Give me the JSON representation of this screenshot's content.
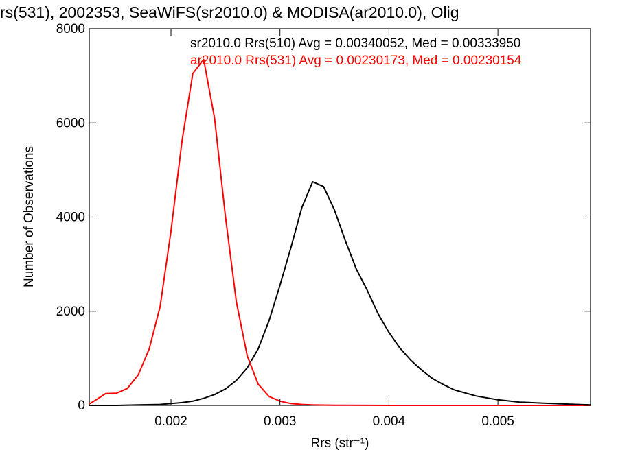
{
  "chart_data": {
    "type": "line",
    "title": "rs(531), 2002353, SeaWiFS(sr2010.0) & MODISA(ar2010.0), Olig",
    "xlabel": "Rrs (str⁻¹)",
    "ylabel": "Number of Observations",
    "xlim": [
      0.00125,
      0.00585
    ],
    "ylim": [
      0,
      8000
    ],
    "x_ticks": [
      {
        "value": 0.002,
        "label": "0.002"
      },
      {
        "value": 0.003,
        "label": "0.003"
      },
      {
        "value": 0.004,
        "label": "0.004"
      },
      {
        "value": 0.005,
        "label": "0.005"
      }
    ],
    "y_ticks": [
      {
        "value": 0,
        "label": "0"
      },
      {
        "value": 2000,
        "label": "2000"
      },
      {
        "value": 4000,
        "label": "4000"
      },
      {
        "value": 6000,
        "label": "6000"
      },
      {
        "value": 8000,
        "label": "8000"
      }
    ],
    "grid": false,
    "legend_position": "top-right",
    "series": [
      {
        "name": "sr2010.0 Rrs(510) Avg = 0.00340052, Med = 0.00333950",
        "color": "#000000",
        "x": [
          0.00125,
          0.0015,
          0.0017,
          0.0019,
          0.002,
          0.0021,
          0.0022,
          0.0023,
          0.0024,
          0.0025,
          0.0026,
          0.0027,
          0.0028,
          0.0029,
          0.003,
          0.0031,
          0.0032,
          0.0033,
          0.0034,
          0.0035,
          0.0036,
          0.0037,
          0.0038,
          0.0039,
          0.004,
          0.0041,
          0.0042,
          0.0043,
          0.0044,
          0.0045,
          0.0046,
          0.0048,
          0.005,
          0.0052,
          0.0054,
          0.0056,
          0.00585
        ],
        "y": [
          0,
          0,
          10,
          20,
          40,
          60,
          90,
          150,
          230,
          350,
          530,
          800,
          1200,
          1800,
          2550,
          3350,
          4200,
          4750,
          4650,
          4150,
          3500,
          2900,
          2450,
          1950,
          1550,
          1220,
          960,
          750,
          570,
          440,
          330,
          200,
          120,
          70,
          50,
          30,
          10
        ]
      },
      {
        "name": "ar2010.0 Rrs(531) Avg = 0.00230173, Med = 0.00230154",
        "color": "#ff0000",
        "x": [
          0.00125,
          0.0013,
          0.0014,
          0.0015,
          0.0016,
          0.0017,
          0.0018,
          0.0019,
          0.002,
          0.0021,
          0.0022,
          0.0023,
          0.0024,
          0.0025,
          0.0026,
          0.0027,
          0.0028,
          0.0029,
          0.003,
          0.0031,
          0.0032,
          0.0033,
          0.0035,
          0.004,
          0.0045,
          0.005,
          0.00585
        ],
        "y": [
          30,
          100,
          250,
          260,
          360,
          650,
          1200,
          2100,
          3700,
          5600,
          7050,
          7350,
          6100,
          4000,
          2200,
          1050,
          450,
          190,
          90,
          40,
          20,
          10,
          5,
          0,
          0,
          0,
          0
        ]
      }
    ]
  }
}
